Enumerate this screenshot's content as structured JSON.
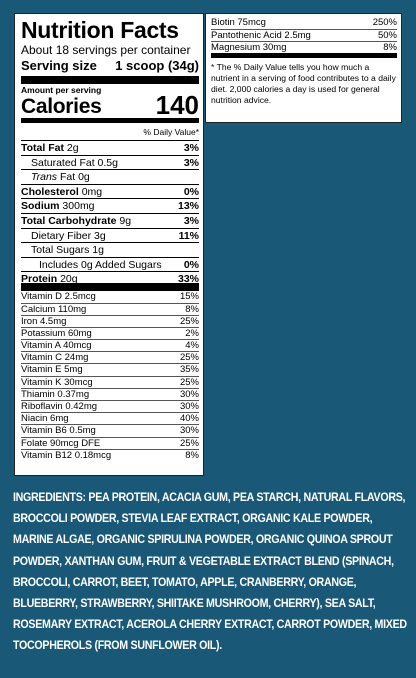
{
  "label": {
    "title": "Nutrition Facts",
    "servings_per_container": "About 18 servings per container",
    "serving_size_label": "Serving size",
    "serving_size_value": "1 scoop (34g)",
    "amount_per_serving": "Amount per serving",
    "calories_label": "Calories",
    "calories_value": "140",
    "dv_header": "% Daily Value*",
    "nutrients": [
      {
        "name": "Total Fat",
        "amount": "2g",
        "dv": "3%"
      },
      {
        "name": "Saturated Fat",
        "amount": "0.5g",
        "dv": "3%"
      },
      {
        "name": "Trans",
        "amount": "Fat 0g",
        "dv": ""
      },
      {
        "name": "Cholesterol",
        "amount": "0mg",
        "dv": "0%"
      },
      {
        "name": "Sodium",
        "amount": "300mg",
        "dv": "13%"
      },
      {
        "name": "Total Carbohydrate",
        "amount": "9g",
        "dv": "3%"
      },
      {
        "name": "Dietary Fiber",
        "amount": "3g",
        "dv": "11%"
      },
      {
        "name": "Total Sugars",
        "amount": "1g",
        "dv": ""
      },
      {
        "name": "Includes 0g Added Sugars",
        "amount": "",
        "dv": "0%"
      },
      {
        "name": "Protein",
        "amount": "20g",
        "dv": "33%"
      }
    ],
    "vitamins": [
      {
        "name": "Vitamin D 2.5mcg",
        "dv": "15%"
      },
      {
        "name": "Calcium 110mg",
        "dv": "8%"
      },
      {
        "name": "Iron 4.5mg",
        "dv": "25%"
      },
      {
        "name": "Potassium 60mg",
        "dv": "2%"
      },
      {
        "name": "Vitamin A 40mcg",
        "dv": "4%"
      },
      {
        "name": "Vitamin C 24mg",
        "dv": "25%"
      },
      {
        "name": "Vitamin E 5mg",
        "dv": "35%"
      },
      {
        "name": "Vitamin K 30mcg",
        "dv": "25%"
      },
      {
        "name": "Thiamin 0.37mg",
        "dv": "30%"
      },
      {
        "name": "Riboflavin 0.42mg",
        "dv": "30%"
      },
      {
        "name": "Niacin 6mg",
        "dv": "40%"
      },
      {
        "name": "Vitamin B6 0.5mg",
        "dv": "30%"
      },
      {
        "name": "Folate 90mcg DFE",
        "dv": "25%"
      },
      {
        "name": "Vitamin B12 0.18mcg",
        "dv": "8%"
      }
    ],
    "continued": [
      {
        "name": "Biotin 75mcg",
        "dv": "250%"
      },
      {
        "name": "Pantothenic Acid 2.5mg",
        "dv": "50%"
      },
      {
        "name": "Magnesium 30mg",
        "dv": "8%"
      }
    ],
    "footnote": "* The % Daily Value tells you how much a nutrient in a serving of food contributes to a daily diet. 2,000 calories a day is used for general nutrition advice."
  },
  "ingredients": {
    "heading": "INGREDIENTS:",
    "text": "PEA PROTEIN, ACACIA GUM, PEA STARCH, NATURAL FLAVORS, BROCCOLI POWDER, STEVIA LEAF EXTRACT, ORGANIC KALE POWDER, MARINE ALGAE,  ORGANIC SPIRULINA POWDER, ORGANIC QUINOA SPROUT POWDER, XANTHAN GUM, FRUIT & VEGETABLE EXTRACT BLEND (SPINACH, BROCCOLI, CARROT, BEET, TOMATO, APPLE, CRANBERRY, ORANGE, BLUEBERRY, STRAWBERRY, SHIITAKE MUSHROOM, CHERRY), SEA SALT, ROSEMARY EXTRACT, ACEROLA CHERRY EXTRACT, CARROT POWDER, MIXED TOCOPHEROLS (FROM SUNFLOWER OIL)."
  },
  "colors": {
    "background": "#1a5878",
    "panel": "#ffffff",
    "text": "#000000",
    "ingredients_text": "#ffffff"
  }
}
